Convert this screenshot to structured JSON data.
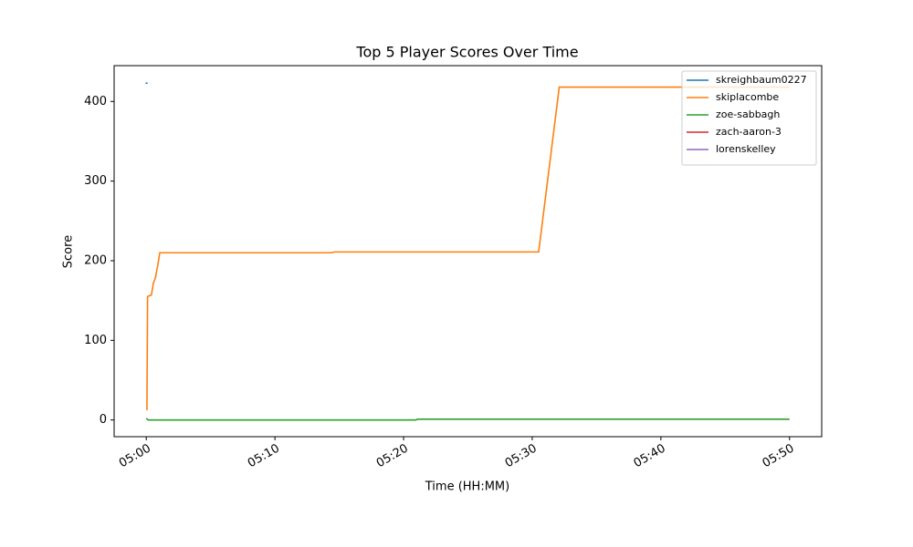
{
  "chart_data": {
    "type": "line",
    "title": "Top 5 Player Scores Over Time",
    "x_label": "Time (HH:MM)",
    "y_label": "Score",
    "xlim": [
      297.5,
      352.5
    ],
    "ylim": [
      -21,
      445
    ],
    "xticks": [
      {
        "value": 300,
        "label": "05:00"
      },
      {
        "value": 310,
        "label": "05:10"
      },
      {
        "value": 320,
        "label": "05:20"
      },
      {
        "value": 330,
        "label": "05:30"
      },
      {
        "value": 340,
        "label": "05:40"
      },
      {
        "value": 350,
        "label": "05:50"
      }
    ],
    "yticks": [
      0,
      100,
      200,
      300,
      400
    ],
    "legend": "upper right",
    "series": [
      {
        "name": "skreighbaum0227",
        "color": "#1f77b4",
        "x": [
          299.95,
          300.1
        ],
        "values": [
          423,
          423
        ]
      },
      {
        "name": "skiplacombe",
        "color": "#ff7f0e",
        "x": [
          300.05,
          300.1,
          300.4,
          300.55,
          300.7,
          300.9,
          301.05,
          314.4,
          314.6,
          330.5,
          332.1,
          350
        ],
        "values": [
          12,
          155,
          157,
          172,
          178,
          195,
          210,
          210,
          211,
          211,
          418,
          418
        ]
      },
      {
        "name": "zoe-sabbagh",
        "color": "#2ca02c",
        "x": [
          300,
          300.15,
          320.95,
          321.1,
          350
        ],
        "values": [
          2,
          0,
          0,
          1,
          1
        ]
      },
      {
        "name": "zach-aaron-3",
        "color": "#d62728",
        "x": [
          300
        ],
        "values": [
          0
        ]
      },
      {
        "name": "lorenskelley",
        "color": "#9467bd",
        "x": [
          300
        ],
        "values": [
          0
        ]
      }
    ]
  }
}
